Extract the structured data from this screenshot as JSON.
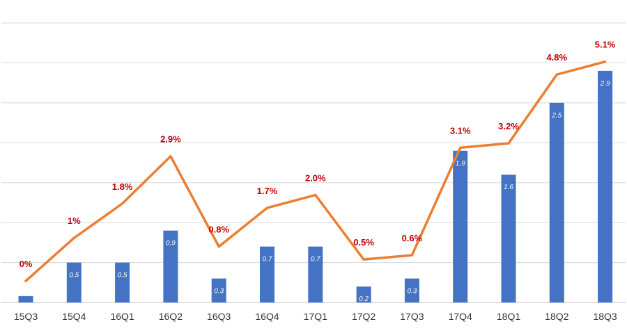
{
  "chart_data": {
    "type": "bar+line",
    "categories": [
      "15Q3",
      "15Q4",
      "16Q1",
      "16Q2",
      "16Q3",
      "16Q4",
      "17Q1",
      "17Q2",
      "17Q3",
      "17Q4",
      "18Q1",
      "18Q2",
      "18Q3"
    ],
    "series": [
      {
        "type": "bar",
        "values": [
          0.08,
          0.5,
          0.5,
          0.9,
          0.3,
          0.7,
          0.7,
          0.2,
          0.3,
          1.9,
          1.6,
          2.5,
          2.9
        ],
        "value_labels": [
          "",
          "0.5",
          "0.5",
          "0.9",
          "0.3",
          "0.7",
          "0.7",
          "0.2",
          "0.3",
          "1.9",
          "1.6",
          "2.5",
          "2.9"
        ],
        "color": "#4472c4"
      },
      {
        "type": "line",
        "values": [
          0,
          1,
          1.8,
          2.9,
          0.8,
          1.7,
          2.0,
          0.5,
          0.6,
          3.1,
          3.2,
          4.8,
          5.1
        ],
        "value_labels": [
          "0%",
          "1%",
          "1.8%",
          "2.9%",
          "0.8%",
          "1.7%",
          "2.0%",
          "0.5%",
          "0.6%",
          "3.1%",
          "3.2%",
          "4.8%",
          "5.1%"
        ],
        "color": "#ed7d31",
        "label_color": "#c00000"
      }
    ],
    "bar_axis_range": [
      0,
      3.5
    ],
    "line_axis_range": [
      -0.5,
      6.0
    ],
    "grid": true,
    "axis_tick_labels_shown": false,
    "legend": "none"
  },
  "colors": {
    "bar": "#4472c4",
    "line": "#ed7d31",
    "line_label": "#c00000",
    "grid": "#d9d9d9",
    "axis": "#bfbfbf"
  }
}
